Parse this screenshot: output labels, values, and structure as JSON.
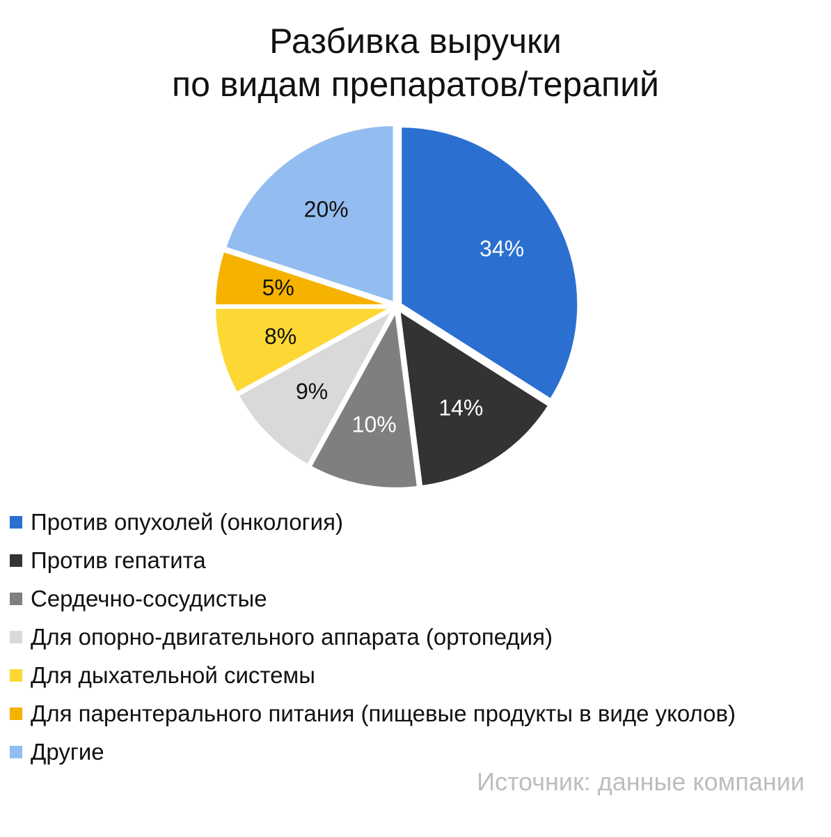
{
  "title_lines": [
    "Разбивка выручки",
    "по видам препаратов/терапий"
  ],
  "source": "Источник: данные компании",
  "chart_data": {
    "type": "pie",
    "title": "Разбивка выручки по видам препаратов/терапий",
    "legend_position": "bottom-left",
    "start": "top, clockwise",
    "slices": [
      {
        "name": "Против опухолей (онкология)",
        "value": 34,
        "label": "34%",
        "color": "#2b70d0",
        "label_color": "#ffffff"
      },
      {
        "name": "Против гепатита",
        "value": 14,
        "label": "14%",
        "color": "#333333",
        "label_color": "#ffffff"
      },
      {
        "name": "Сердечно-сосудистые",
        "value": 10,
        "label": "10%",
        "color": "#7f7f7f",
        "label_color": "#ffffff"
      },
      {
        "name": "Для опорно-двигательного аппарата (ортопедия)",
        "value": 9,
        "label": "9%",
        "color": "#d9d9d9",
        "label_color": "#111111"
      },
      {
        "name": "Для дыхательной системы",
        "value": 8,
        "label": "8%",
        "color": "#fdd835",
        "label_color": "#111111"
      },
      {
        "name": "Для парентерального питания (пищевые продукты в виде уколов)",
        "value": 5,
        "label": "5%",
        "color": "#f5b300",
        "label_color": "#111111"
      },
      {
        "name": "Другие",
        "value": 20,
        "label": "20%",
        "color": "#93bdf0",
        "label_color": "#111111"
      }
    ]
  }
}
